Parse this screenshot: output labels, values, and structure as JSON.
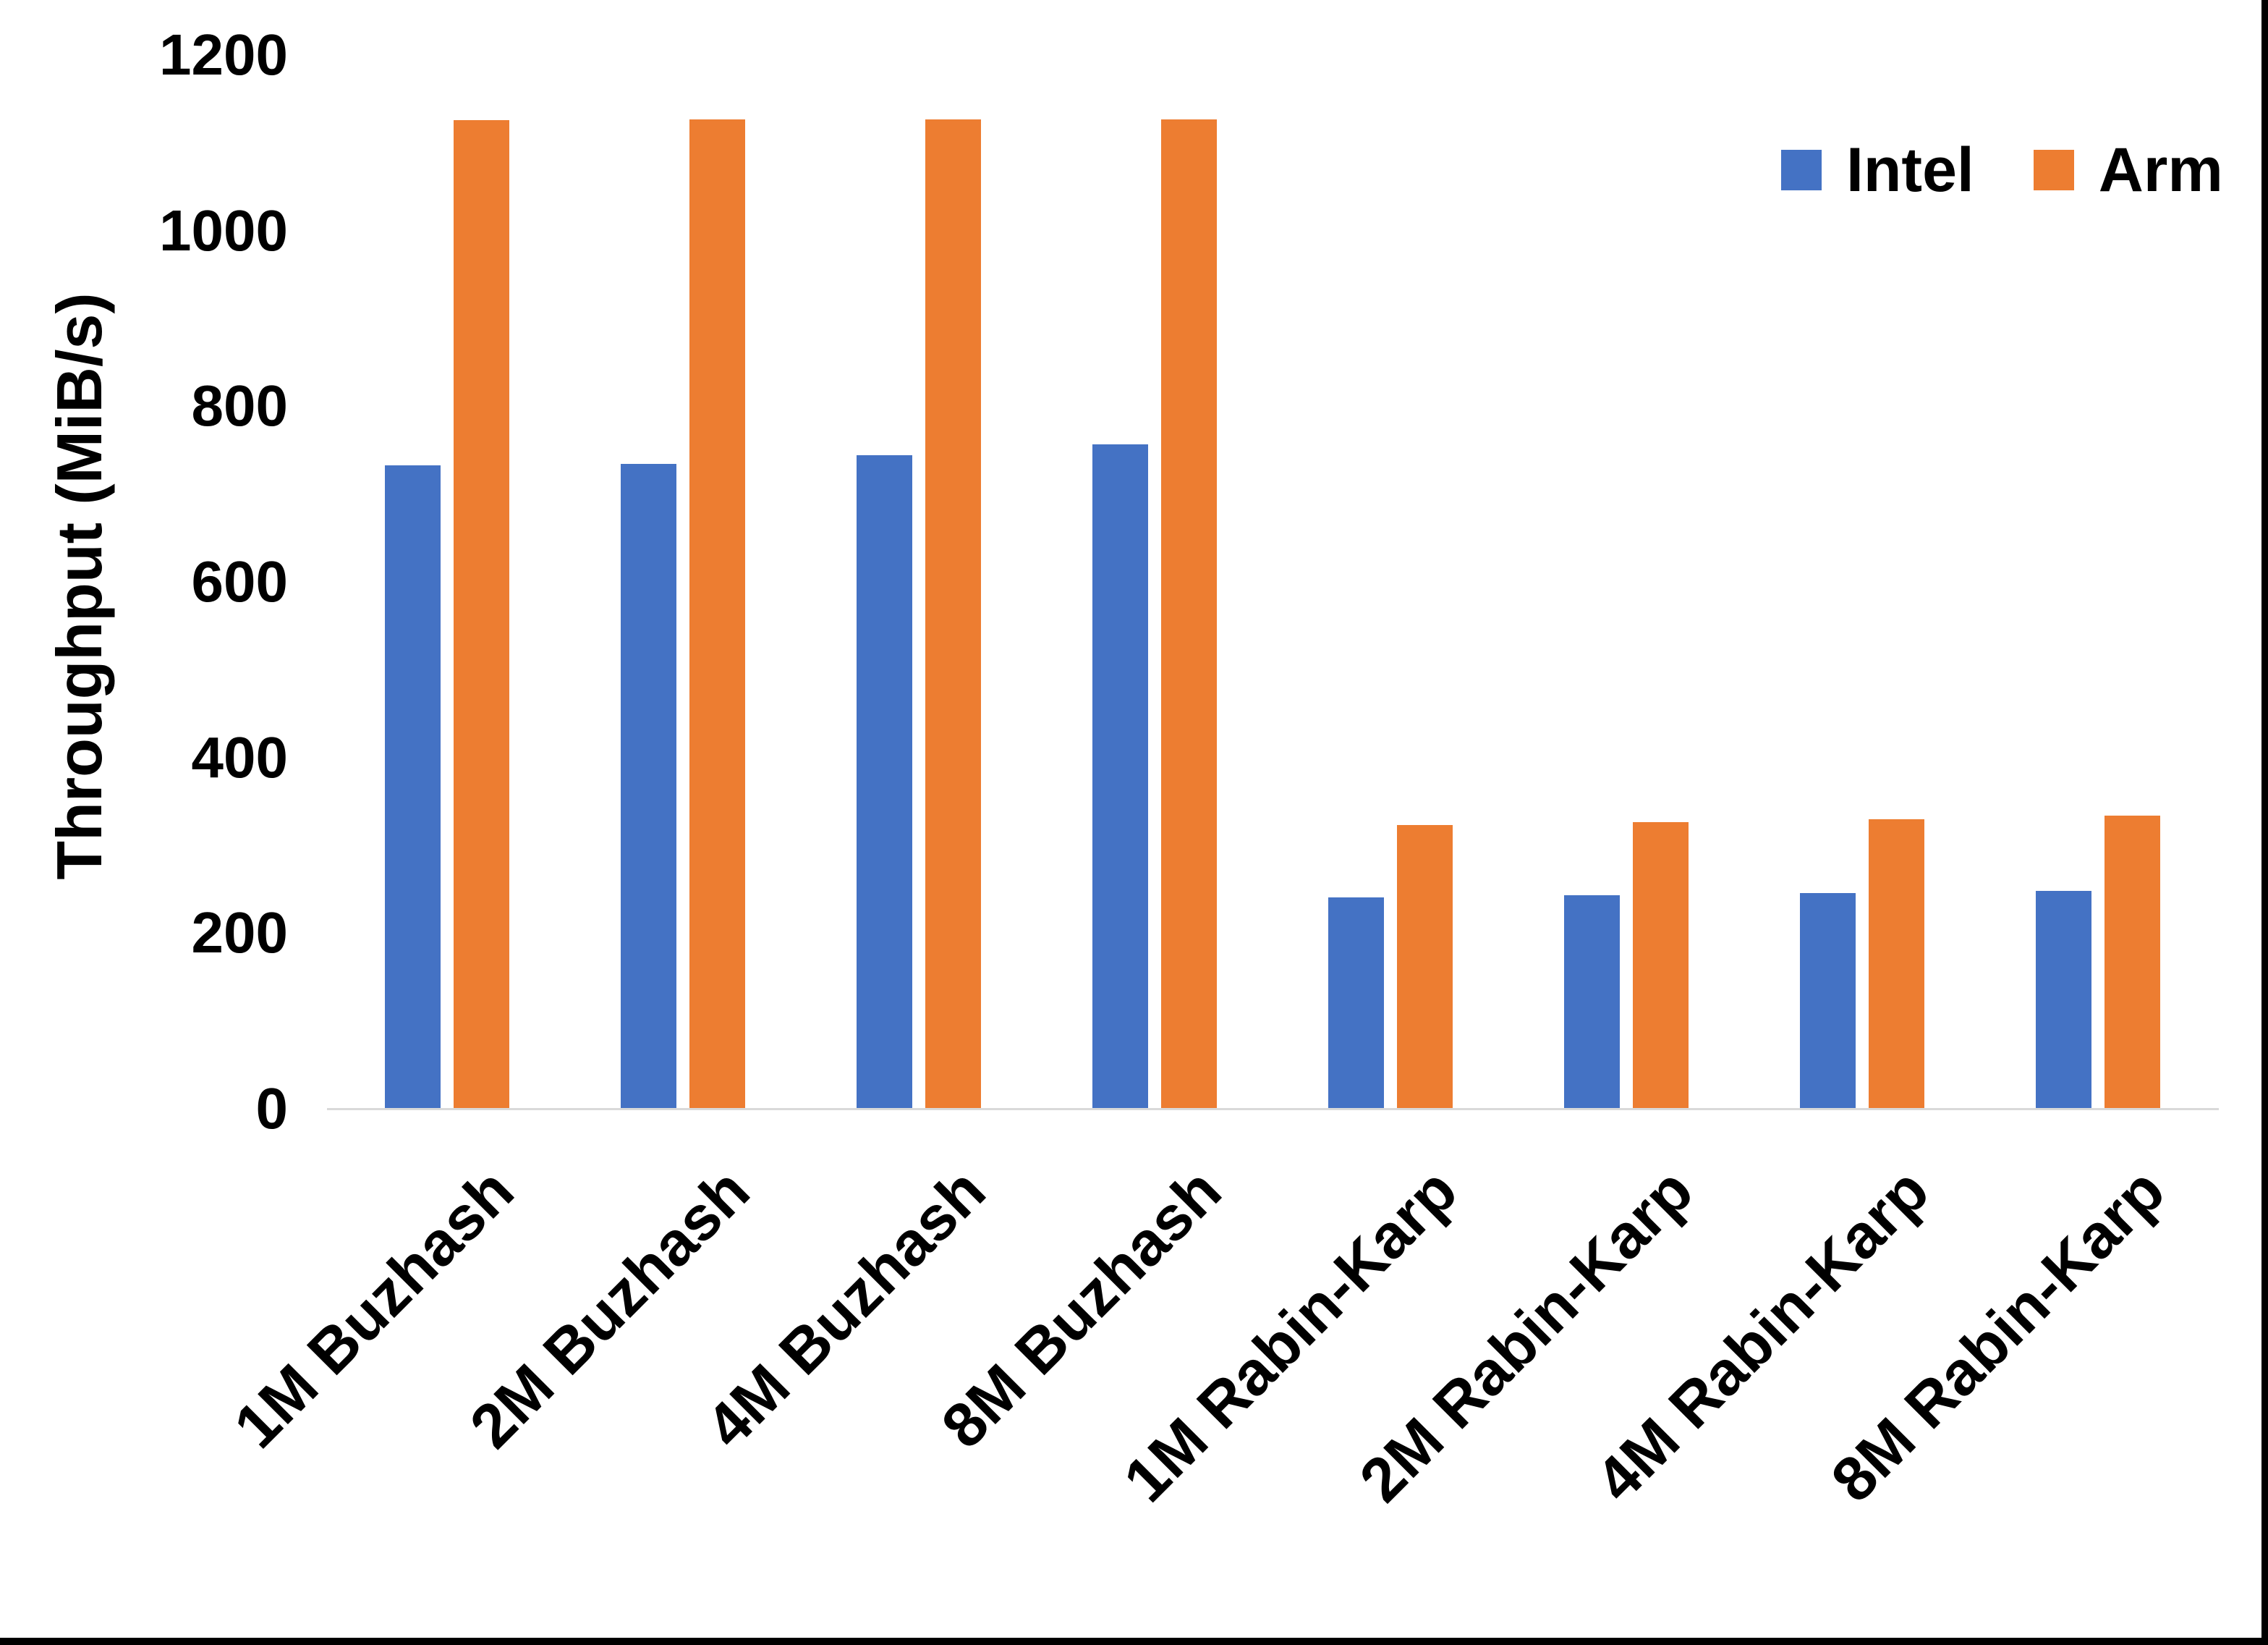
{
  "figure": {
    "background_color": "#FFFFFF",
    "edge_border_color": "#000000",
    "axis_line_color": "#D9D9D9",
    "text_color": "#000000"
  },
  "chart_data": {
    "type": "bar",
    "title": "",
    "xlabel": "",
    "ylabel": "Throughput (MiB/s)",
    "ylim": [
      0,
      1200
    ],
    "yticks": [
      0,
      200,
      400,
      600,
      800,
      1000,
      1200
    ],
    "grid": false,
    "legend_position": "top-right",
    "categories": [
      "1M Buzhash",
      "2M Buzhash",
      "4M Buzhash",
      "8M Buzhash",
      "1M Rabin-Karp",
      "2M Rabin-Karp",
      "4M Rabin-Karp",
      "8M Rabin-Karp"
    ],
    "series": [
      {
        "name": "Intel",
        "color": "#4472C4",
        "values": [
          733,
          734,
          744,
          757,
          241,
          243,
          246,
          248
        ]
      },
      {
        "name": "Arm",
        "color": "#ED7D31",
        "values": [
          1126,
          1127,
          1127,
          1127,
          323,
          326,
          330,
          334
        ]
      }
    ]
  }
}
